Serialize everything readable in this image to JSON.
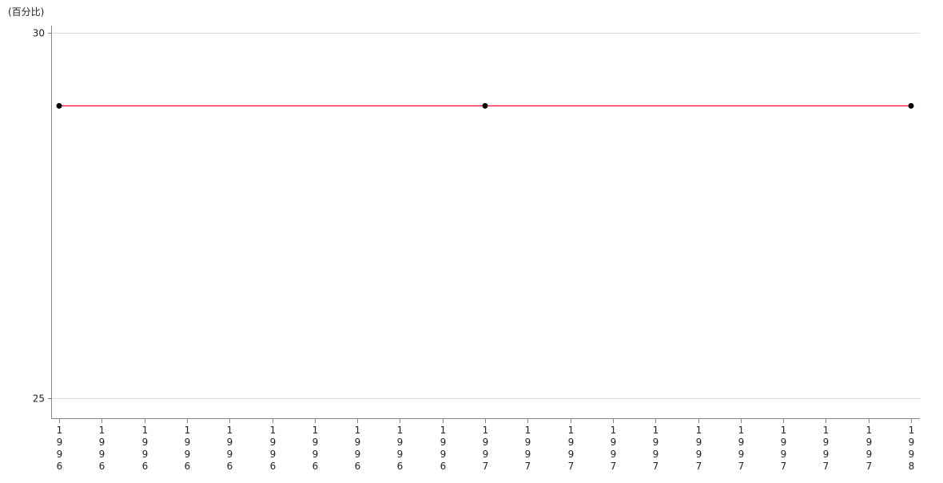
{
  "chart_data": {
    "type": "line",
    "title": "",
    "ylabel": "(百分比)",
    "xlabel": "",
    "ylim": [
      25,
      30
    ],
    "yticks": [
      25,
      30
    ],
    "grid": true,
    "x_tick_labels": [
      "1996",
      "1996.",
      "1996.",
      "1996.",
      "1996.",
      "1996.",
      "1996.",
      "1996.",
      "1996.",
      "1996.",
      "1997",
      "1997.",
      "1997.",
      "1997.",
      "1997.",
      "1997.",
      "1997.",
      "1997.",
      "1997.",
      "1997.",
      "1998"
    ],
    "series": [
      {
        "x": [
          0,
          10,
          20
        ],
        "x_labels": [
          "1996",
          "1997",
          "1998"
        ],
        "values": [
          29,
          29,
          29
        ],
        "color": "#ff0033",
        "marker_color": "#000000"
      }
    ]
  }
}
